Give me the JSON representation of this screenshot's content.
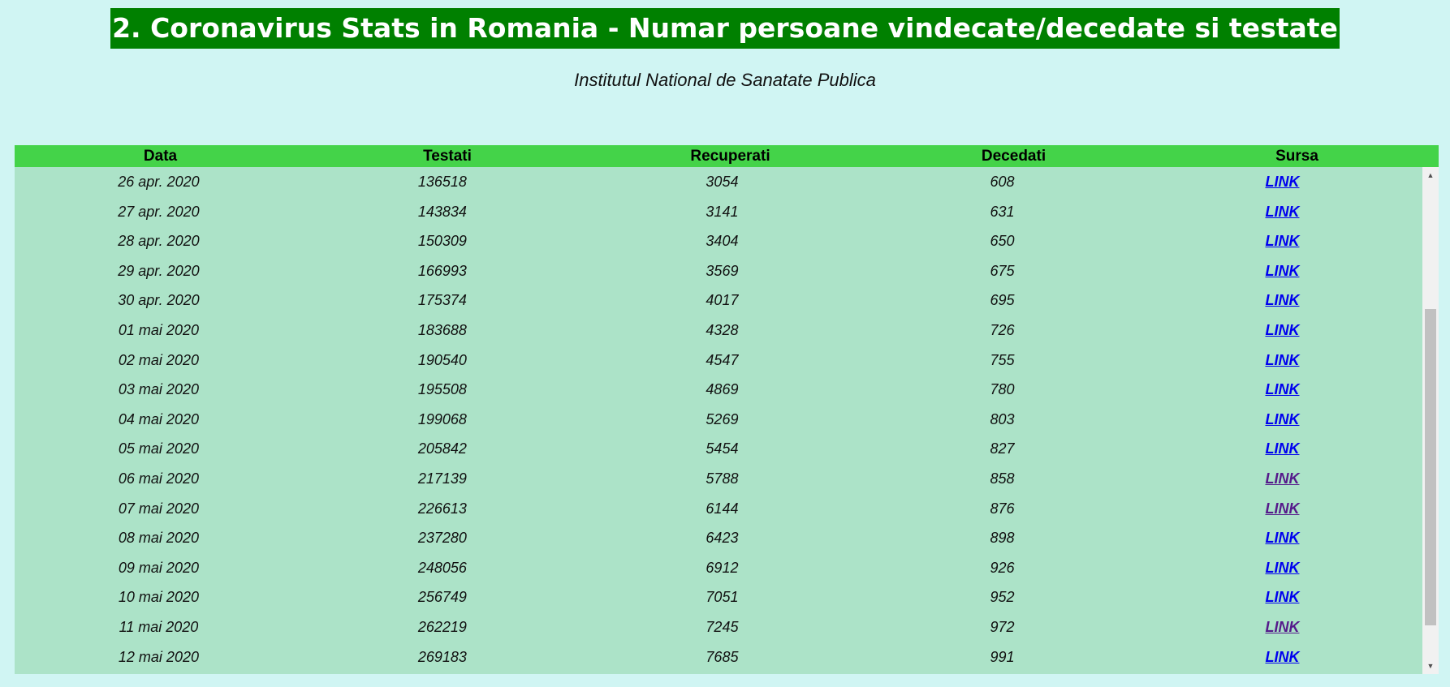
{
  "header": {
    "title": "2. Coronavirus Stats in Romania - Numar persoane vindecate/decedate si testate",
    "subtitle": "Institutul National de Sanatate Publica"
  },
  "table": {
    "columns": [
      "Data",
      "Testati",
      "Recuperati",
      "Decedati",
      "Sursa"
    ],
    "rows": [
      {
        "date": "26 apr. 2020",
        "tested": "136518",
        "recovered": "3054",
        "deaths": "608",
        "source": "LINK",
        "visited": false
      },
      {
        "date": "27 apr. 2020",
        "tested": "143834",
        "recovered": "3141",
        "deaths": "631",
        "source": "LINK",
        "visited": false
      },
      {
        "date": "28 apr. 2020",
        "tested": "150309",
        "recovered": "3404",
        "deaths": "650",
        "source": "LINK",
        "visited": false
      },
      {
        "date": "29 apr. 2020",
        "tested": "166993",
        "recovered": "3569",
        "deaths": "675",
        "source": "LINK",
        "visited": false
      },
      {
        "date": "30 apr. 2020",
        "tested": "175374",
        "recovered": "4017",
        "deaths": "695",
        "source": "LINK",
        "visited": false
      },
      {
        "date": "01 mai 2020",
        "tested": "183688",
        "recovered": "4328",
        "deaths": "726",
        "source": "LINK",
        "visited": false
      },
      {
        "date": "02 mai 2020",
        "tested": "190540",
        "recovered": "4547",
        "deaths": "755",
        "source": "LINK",
        "visited": false
      },
      {
        "date": "03 mai 2020",
        "tested": "195508",
        "recovered": "4869",
        "deaths": "780",
        "source": "LINK",
        "visited": false
      },
      {
        "date": "04 mai 2020",
        "tested": "199068",
        "recovered": "5269",
        "deaths": "803",
        "source": "LINK",
        "visited": false
      },
      {
        "date": "05 mai 2020",
        "tested": "205842",
        "recovered": "5454",
        "deaths": "827",
        "source": "LINK",
        "visited": false
      },
      {
        "date": "06 mai 2020",
        "tested": "217139",
        "recovered": "5788",
        "deaths": "858",
        "source": "LINK",
        "visited": true
      },
      {
        "date": "07 mai 2020",
        "tested": "226613",
        "recovered": "6144",
        "deaths": "876",
        "source": "LINK",
        "visited": true
      },
      {
        "date": "08 mai 2020",
        "tested": "237280",
        "recovered": "6423",
        "deaths": "898",
        "source": "LINK",
        "visited": false
      },
      {
        "date": "09 mai 2020",
        "tested": "248056",
        "recovered": "6912",
        "deaths": "926",
        "source": "LINK",
        "visited": false
      },
      {
        "date": "10 mai 2020",
        "tested": "256749",
        "recovered": "7051",
        "deaths": "952",
        "source": "LINK",
        "visited": false
      },
      {
        "date": "11 mai 2020",
        "tested": "262219",
        "recovered": "7245",
        "deaths": "972",
        "source": "LINK",
        "visited": true
      },
      {
        "date": "12 mai 2020",
        "tested": "269183",
        "recovered": "7685",
        "deaths": "991",
        "source": "LINK",
        "visited": false
      }
    ]
  },
  "colors": {
    "page_bg": "#d0f5f3",
    "title_bg": "#008000",
    "header_bg": "#44d349",
    "body_bg": "#ace3c8",
    "link": "#0000ee",
    "link_visited": "#551a8b"
  },
  "scrollbar": {
    "up_icon": "scroll-up-arrow-icon",
    "down_icon": "scroll-down-arrow-icon"
  }
}
